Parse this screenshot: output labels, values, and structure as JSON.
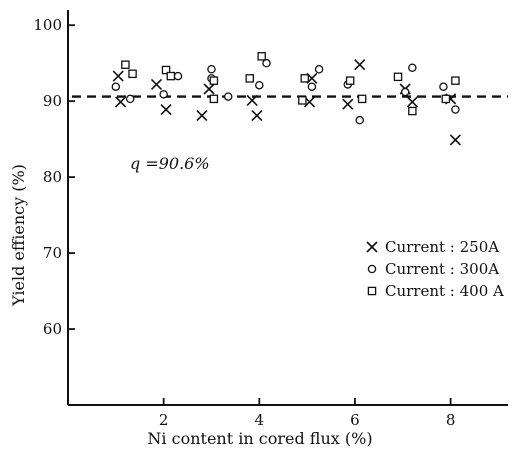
{
  "chart_data": {
    "type": "scatter",
    "xlabel": "Ni content in cored flux (%)",
    "ylabel": "Yield effiency (%)",
    "xlim": [
      0,
      9.2
    ],
    "ylim": [
      50,
      102
    ],
    "xticks": [
      2,
      4,
      6,
      8
    ],
    "yticks": [
      60,
      70,
      80,
      90,
      100
    ],
    "xtick_labels": [
      "2",
      "4",
      "6",
      "8"
    ],
    "ytick_labels": [
      "60",
      "70",
      "80",
      "90",
      "100"
    ],
    "grid": false,
    "legend_position": "right",
    "reference_line": {
      "y": 90.6,
      "style": "dashed",
      "label": "q =90.6%"
    },
    "series": [
      {
        "name": "Current : 250A",
        "marker": "x",
        "points": [
          [
            1.05,
            93.3
          ],
          [
            1.1,
            89.9
          ],
          [
            1.85,
            92.2
          ],
          [
            2.05,
            88.9
          ],
          [
            2.8,
            88.1
          ],
          [
            2.95,
            91.6
          ],
          [
            3.85,
            90.1
          ],
          [
            3.95,
            88.1
          ],
          [
            5.05,
            89.9
          ],
          [
            5.1,
            93.0
          ],
          [
            5.85,
            89.6
          ],
          [
            6.1,
            94.8
          ],
          [
            7.05,
            91.6
          ],
          [
            7.2,
            89.9
          ],
          [
            8.0,
            90.3
          ],
          [
            8.1,
            84.9
          ]
        ]
      },
      {
        "name": "Current : 300A",
        "marker": "circle",
        "points": [
          [
            1.0,
            91.9
          ],
          [
            1.3,
            90.3
          ],
          [
            2.0,
            90.9
          ],
          [
            2.3,
            93.3
          ],
          [
            3.0,
            93.0
          ],
          [
            3.0,
            94.2
          ],
          [
            3.35,
            90.6
          ],
          [
            4.0,
            92.1
          ],
          [
            4.15,
            95.0
          ],
          [
            5.1,
            91.9
          ],
          [
            5.25,
            94.2
          ],
          [
            5.85,
            92.2
          ],
          [
            6.1,
            87.5
          ],
          [
            7.05,
            91.2
          ],
          [
            7.2,
            94.4
          ],
          [
            7.85,
            91.9
          ],
          [
            8.1,
            88.9
          ]
        ]
      },
      {
        "name": "Current : 400 A",
        "marker": "square",
        "points": [
          [
            1.2,
            94.8
          ],
          [
            1.35,
            93.6
          ],
          [
            2.05,
            94.1
          ],
          [
            2.15,
            93.3
          ],
          [
            3.05,
            90.3
          ],
          [
            3.05,
            92.7
          ],
          [
            3.8,
            93.0
          ],
          [
            4.05,
            95.9
          ],
          [
            4.9,
            90.1
          ],
          [
            4.95,
            93.0
          ],
          [
            5.9,
            92.7
          ],
          [
            6.15,
            90.3
          ],
          [
            6.9,
            93.2
          ],
          [
            7.2,
            88.7
          ],
          [
            7.9,
            90.3
          ],
          [
            8.1,
            92.7
          ]
        ]
      }
    ]
  }
}
